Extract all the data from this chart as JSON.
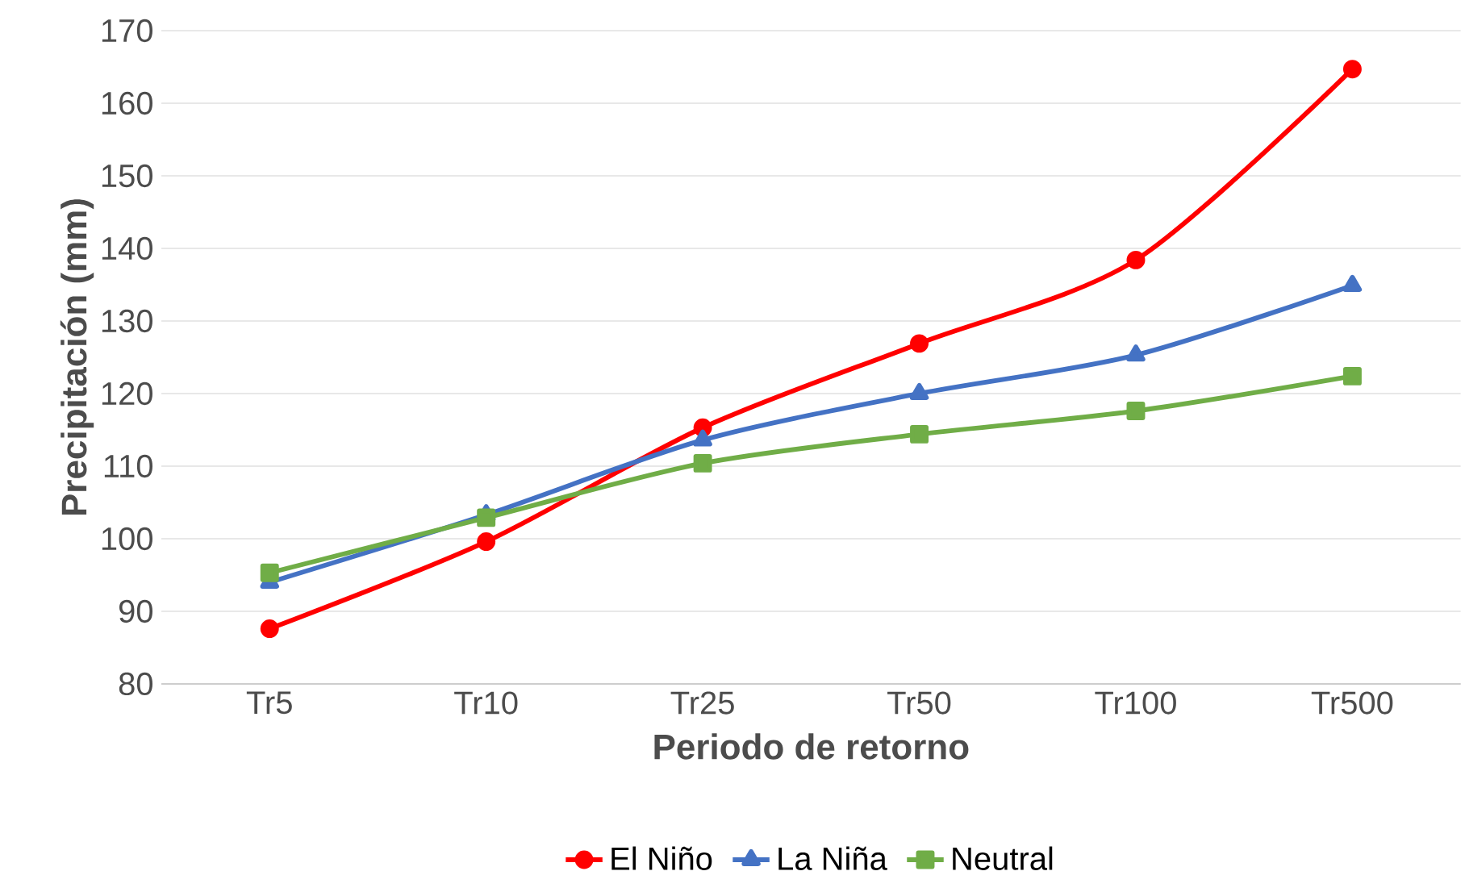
{
  "chart_data": {
    "type": "line",
    "xlabel": "Periodo de retorno",
    "ylabel": "Precipitación (mm)",
    "categories": [
      "Tr5",
      "Tr10",
      "Tr25",
      "Tr50",
      "Tr100",
      "Tr500"
    ],
    "series": [
      {
        "name": "El Niño",
        "color": "#ff0000",
        "marker": "circle",
        "values": [
          87.6,
          99.6,
          115.3,
          126.9,
          138.4,
          164.7
        ]
      },
      {
        "name": "La Niña",
        "color": "#4472c4",
        "marker": "triangle",
        "values": [
          94.0,
          103.3,
          113.6,
          120.0,
          125.3,
          134.9
        ]
      },
      {
        "name": "Neutral",
        "color": "#70ad47",
        "marker": "square",
        "values": [
          95.3,
          102.9,
          110.4,
          114.4,
          117.6,
          122.4
        ]
      }
    ],
    "ylim": [
      80,
      170
    ],
    "yticks": [
      80,
      90,
      100,
      110,
      120,
      130,
      140,
      150,
      160,
      170
    ],
    "grid": "y",
    "legend": "bottom",
    "line_style": "solid"
  }
}
